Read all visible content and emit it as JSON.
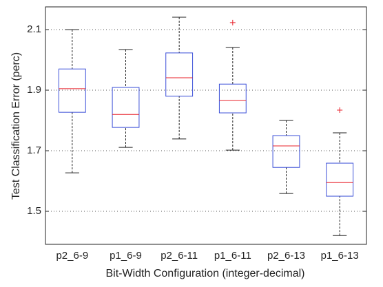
{
  "chart_data": {
    "type": "box",
    "xlabel": "Bit-Width Configuration (integer-decimal)",
    "ylabel": "Test Classification Error (perc)",
    "categories": [
      "p2_6-9",
      "p1_6-9",
      "p2_6-11",
      "p1_6-11",
      "p2_6-13",
      "p1_6-13"
    ],
    "boxes": [
      {
        "whislo": 1.627,
        "q1": 1.827,
        "med": 1.905,
        "q3": 1.97,
        "whishi": 2.1,
        "fliers": []
      },
      {
        "whislo": 1.711,
        "q1": 1.777,
        "med": 1.82,
        "q3": 1.909,
        "whishi": 2.034,
        "fliers": []
      },
      {
        "whislo": 1.739,
        "q1": 1.88,
        "med": 1.941,
        "q3": 2.023,
        "whishi": 2.141,
        "fliers": []
      },
      {
        "whislo": 1.702,
        "q1": 1.825,
        "med": 1.866,
        "q3": 1.92,
        "whishi": 2.041,
        "fliers": [
          2.123
        ]
      },
      {
        "whislo": 1.559,
        "q1": 1.645,
        "med": 1.716,
        "q3": 1.75,
        "whishi": 1.8,
        "fliers": []
      },
      {
        "whislo": 1.42,
        "q1": 1.55,
        "med": 1.595,
        "q3": 1.659,
        "whishi": 1.759,
        "fliers": [
          1.834
        ]
      }
    ],
    "box_color": "#3b4fd8",
    "median_color": "#e8202a",
    "whisker_color": "#222222",
    "flier_color": "#e8202a",
    "ylim": [
      1.391,
      2.175
    ],
    "yticks": [
      1.5,
      1.7,
      1.9,
      2.1
    ],
    "grid": true
  }
}
